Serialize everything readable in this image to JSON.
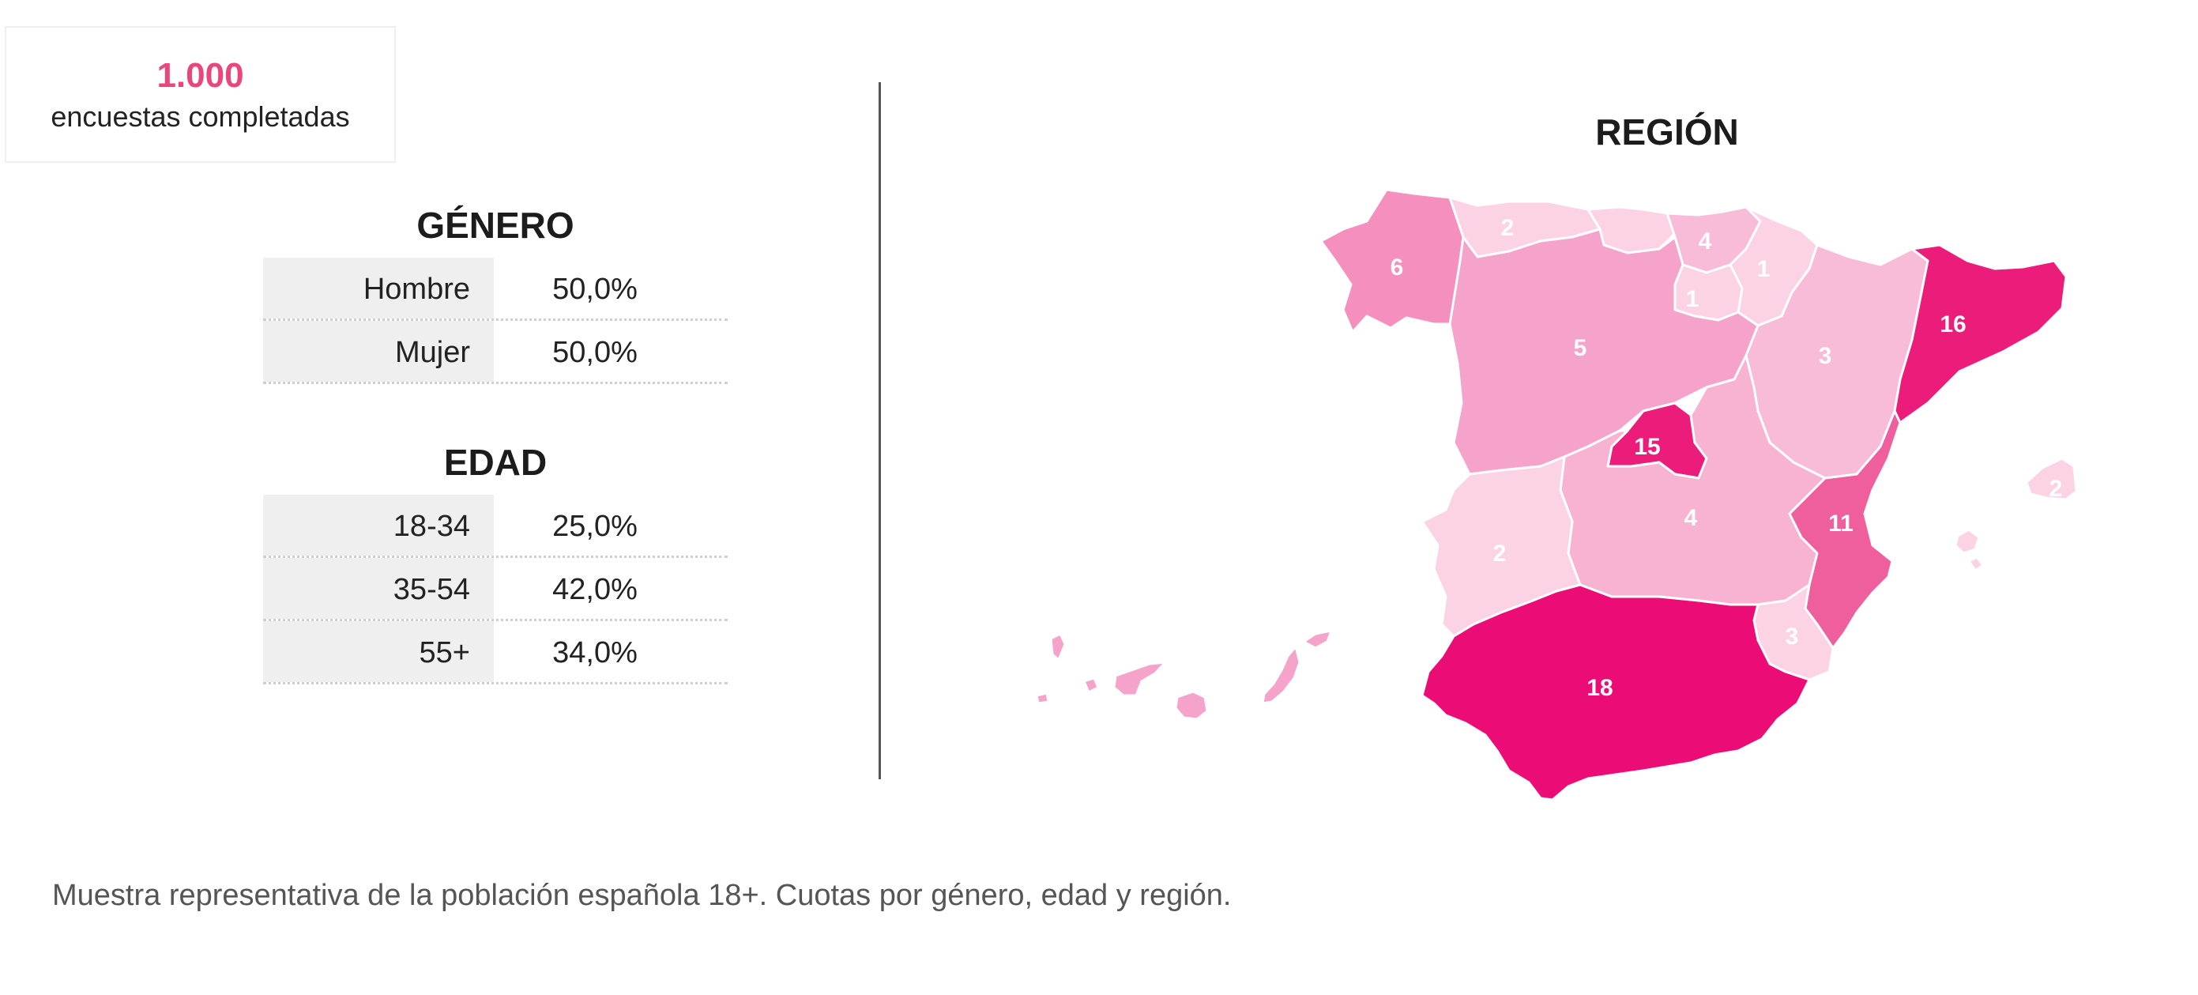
{
  "summary": {
    "count": "1.000",
    "label": "encuestas completadas"
  },
  "gender": {
    "title": "GÉNERO",
    "rows": [
      {
        "label": "Hombre",
        "value": "50,0%"
      },
      {
        "label": "Mujer",
        "value": "50,0%"
      }
    ]
  },
  "age": {
    "title": "EDAD",
    "rows": [
      {
        "label": "18-34",
        "value": "25,0%"
      },
      {
        "label": "35-54",
        "value": "42,0%"
      },
      {
        "label": "55+",
        "value": "34,0%"
      }
    ]
  },
  "region": {
    "title": "REGIÓN",
    "colors": {
      "lightest": "#fbd3e5",
      "light": "#f8bcd8",
      "mid": "#f6a3cb",
      "strong": "#ef6aa6",
      "strongest": "#ec0c75"
    },
    "regions": [
      {
        "name": "galicia",
        "value": "6",
        "color": "#f48fbe"
      },
      {
        "name": "asturias",
        "value": "2",
        "color": "#fbd3e5"
      },
      {
        "name": "cantabria",
        "value": "",
        "color": "#fbd3e5"
      },
      {
        "name": "pais-vasco",
        "value": "4",
        "color": "#f8bcd8"
      },
      {
        "name": "navarra",
        "value": "1",
        "color": "#fbd3e5"
      },
      {
        "name": "la-rioja",
        "value": "1",
        "color": "#fbd3e5"
      },
      {
        "name": "castilla-y-leon",
        "value": "5",
        "color": "#f6a3cb"
      },
      {
        "name": "aragon",
        "value": "3",
        "color": "#f8bcd8"
      },
      {
        "name": "cataluna",
        "value": "16",
        "color": "#ec1c7b"
      },
      {
        "name": "madrid",
        "value": "15",
        "color": "#ec1c7b"
      },
      {
        "name": "castilla-la-mancha",
        "value": "4",
        "color": "#f8b3d2"
      },
      {
        "name": "valencia",
        "value": "11",
        "color": "#ef5f9d"
      },
      {
        "name": "extremadura",
        "value": "2",
        "color": "#fbd3e5"
      },
      {
        "name": "murcia",
        "value": "3",
        "color": "#fbd3e5"
      },
      {
        "name": "andalucia",
        "value": "18",
        "color": "#ec0c75"
      },
      {
        "name": "baleares",
        "value": "2",
        "color": "#fbd3e5"
      },
      {
        "name": "canarias",
        "value": "",
        "color": "#f6a3cb"
      }
    ]
  },
  "footnote": "Muestra representativa de la población española 18+. Cuotas por género, edad y región."
}
